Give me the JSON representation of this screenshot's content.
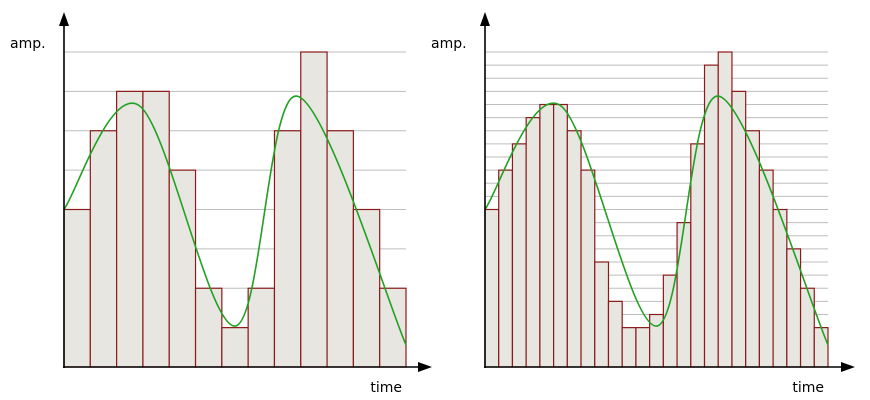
{
  "panels": [
    {
      "ylabel": "amp.",
      "xlabel": "time",
      "quantization_levels": 8,
      "sample_levels": [
        4,
        6,
        7,
        7,
        5,
        2,
        1,
        2,
        6,
        8,
        6,
        4,
        2
      ]
    },
    {
      "ylabel": "amp.",
      "xlabel": "time",
      "quantization_levels": 24,
      "sample_levels": [
        12,
        15,
        17,
        19,
        20,
        20,
        18,
        15,
        8,
        5,
        3,
        3,
        4,
        7,
        11,
        17,
        23,
        24,
        21,
        18,
        15,
        12,
        9,
        6,
        3
      ]
    }
  ],
  "signal": {
    "description_points": [
      [
        0,
        0.5
      ],
      [
        0.22,
        0.83
      ],
      [
        0.5,
        0.13
      ],
      [
        0.68,
        0.86
      ],
      [
        1.0,
        0.07
      ]
    ],
    "color": "#22a022"
  },
  "colors": {
    "bar_fill": "#e7e6e0",
    "bar_stroke": "#8b1a1a",
    "grid": "#bdbdbd"
  }
}
